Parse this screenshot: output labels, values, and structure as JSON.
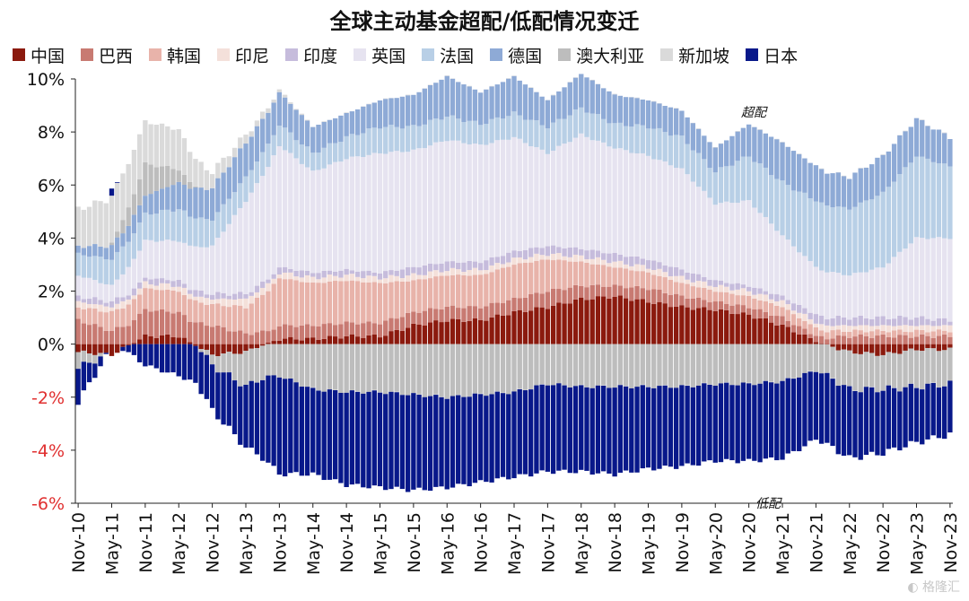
{
  "chart_data": {
    "type": "bar",
    "stacked": true,
    "title": "全球主动基金超配/低配情况变迁",
    "annotations": [
      "超配",
      "低配"
    ],
    "xlabel": "",
    "ylabel": "",
    "ylim": [
      -6,
      10
    ],
    "y_ticks": [
      "10%",
      "8%",
      "6%",
      "4%",
      "2%",
      "0%",
      "-2%",
      "-4%",
      "-6%"
    ],
    "y_tick_values": [
      10,
      8,
      6,
      4,
      2,
      0,
      -2,
      -4,
      -6
    ],
    "negative_tick_color": "#e03030",
    "x_tick_labels": [
      "Nov-10",
      "May-11",
      "Nov-11",
      "May-12",
      "Nov-12",
      "May-13",
      "Nov-13",
      "May-14",
      "Nov-14",
      "May-15",
      "Nov-15",
      "May-16",
      "Nov-16",
      "May-17",
      "Nov-17",
      "May-18",
      "Nov-18",
      "May-19",
      "Nov-19",
      "May-20",
      "Nov-20",
      "May-21",
      "Nov-21",
      "May-22",
      "Nov-22",
      "May-23",
      "Nov-23"
    ],
    "grid": false,
    "legend_position": "top",
    "series_order": [
      "中国",
      "巴西",
      "韩国",
      "印尼",
      "印度",
      "英国",
      "法国",
      "德国",
      "澳大利亚",
      "新加坡",
      "日本"
    ],
    "colors": {
      "中国": "#8b1a0e",
      "巴西": "#c87a72",
      "韩国": "#e8b3aa",
      "印尼": "#f4e0da",
      "印度": "#c6bcdc",
      "英国": "#e6e3f0",
      "法国": "#b8cfe6",
      "德国": "#8eaad6",
      "澳大利亚": "#bdbdbd",
      "新加坡": "#dadada",
      "日本": "#08188a"
    },
    "keypoints": [
      {
        "date": "Nov-10",
        "中国": -0.3,
        "巴西": 0.9,
        "韩国": 0.5,
        "印尼": 0.2,
        "印度": 0.2,
        "英国": 0.8,
        "法国": 0.8,
        "德国": 0.3,
        "澳大利亚": -0.6,
        "新加坡": 1.4,
        "日本": -1.3
      },
      {
        "date": "May-11",
        "中国": -0.4,
        "巴西": 0.5,
        "韩国": 0.7,
        "印尼": 0.2,
        "印度": 0.2,
        "英国": 0.6,
        "法国": 1.0,
        "德国": 0.5,
        "澳大利亚": 0.1,
        "新加坡": 1.8,
        "日本": 0.2
      },
      {
        "date": "Nov-11",
        "中国": 0.3,
        "巴西": 1.0,
        "韩国": 0.8,
        "印尼": 0.2,
        "印度": 0.2,
        "英国": 1.4,
        "法国": 1.0,
        "德国": 0.7,
        "澳大利亚": 1.2,
        "新加坡": 1.6,
        "日本": -0.8
      },
      {
        "date": "May-12",
        "中国": 0.3,
        "巴西": 0.9,
        "韩国": 0.8,
        "印尼": 0.2,
        "印度": 0.2,
        "英国": 1.5,
        "法国": 1.2,
        "德国": 1.0,
        "澳大利亚": 0.5,
        "新加坡": 1.5,
        "日本": -1.2
      },
      {
        "date": "Nov-12",
        "中国": -0.4,
        "巴西": 0.7,
        "韩国": 0.8,
        "印尼": 0.2,
        "印度": 0.2,
        "英国": 1.8,
        "法国": 1.0,
        "德国": 1.2,
        "澳大利亚": -0.4,
        "新加坡": 0.6,
        "日本": -1.7
      },
      {
        "date": "May-13",
        "中国": -0.3,
        "巴西": 0.4,
        "韩国": 1.0,
        "印尼": 0.3,
        "印度": 0.2,
        "英国": 3.5,
        "法国": 0.9,
        "德国": 1.3,
        "澳大利亚": -1.3,
        "新加坡": 0.3,
        "日本": -2.3
      },
      {
        "date": "Nov-13",
        "中国": 0.2,
        "巴西": 0.5,
        "韩国": 1.8,
        "印尼": 0.2,
        "印度": 0.2,
        "英国": 4.6,
        "法国": 0.8,
        "德国": 1.2,
        "澳大利亚": -1.2,
        "新加坡": 0.1,
        "日本": -3.7
      },
      {
        "date": "May-14",
        "中国": 0.2,
        "巴西": 0.5,
        "韩国": 1.6,
        "印尼": 0.2,
        "印度": 0.2,
        "英国": 3.8,
        "法国": 0.7,
        "德国": 1.0,
        "澳大利亚": -1.7,
        "新加坡": 0.0,
        "日本": -3.2
      },
      {
        "date": "Nov-14",
        "中国": 0.3,
        "巴西": 0.5,
        "韩国": 1.6,
        "印尼": 0.2,
        "印度": 0.2,
        "英国": 4.2,
        "法国": 0.8,
        "德国": 0.9,
        "澳大利亚": -1.8,
        "新加坡": 0.0,
        "日本": -3.5
      },
      {
        "date": "May-15",
        "中国": 0.3,
        "巴西": 0.5,
        "韩国": 1.5,
        "印尼": 0.2,
        "印度": 0.2,
        "英国": 4.5,
        "法国": 1.0,
        "德国": 1.0,
        "澳大利亚": -1.8,
        "新加坡": 0.0,
        "日本": -3.6
      },
      {
        "date": "Nov-15",
        "中国": 0.7,
        "巴西": 0.5,
        "韩国": 1.2,
        "印尼": 0.2,
        "印度": 0.3,
        "英国": 4.4,
        "法国": 0.9,
        "德国": 1.2,
        "澳大利亚": -1.9,
        "新加坡": 0.0,
        "日本": -3.6
      },
      {
        "date": "May-16",
        "中国": 0.9,
        "巴西": 0.5,
        "韩国": 1.2,
        "印尼": 0.2,
        "印度": 0.3,
        "英国": 4.6,
        "法国": 0.9,
        "德国": 1.5,
        "澳大利亚": -2.0,
        "新加坡": 0.0,
        "日本": -3.4
      },
      {
        "date": "Nov-16",
        "中国": 0.9,
        "巴西": 0.5,
        "韩国": 1.2,
        "印尼": 0.2,
        "印度": 0.3,
        "英国": 4.4,
        "法国": 0.8,
        "德国": 1.2,
        "澳大利亚": -1.9,
        "新加坡": 0.0,
        "日本": -3.3
      },
      {
        "date": "May-17",
        "中国": 1.2,
        "巴西": 0.5,
        "韩国": 1.3,
        "印尼": 0.2,
        "印度": 0.3,
        "英国": 4.3,
        "法国": 0.9,
        "德国": 1.4,
        "澳大利亚": -1.8,
        "新加坡": 0.0,
        "日本": -3.2
      },
      {
        "date": "Nov-17",
        "中国": 1.4,
        "巴西": 0.6,
        "韩国": 1.2,
        "印尼": 0.2,
        "印度": 0.3,
        "英国": 3.5,
        "法国": 1.0,
        "德国": 1.0,
        "澳大利亚": -1.5,
        "新加坡": 0.0,
        "日本": -3.3
      },
      {
        "date": "May-18",
        "中国": 1.7,
        "巴西": 0.5,
        "韩国": 0.9,
        "印尼": 0.2,
        "印度": 0.3,
        "英国": 4.3,
        "法国": 1.0,
        "德国": 1.3,
        "澳大利亚": -1.6,
        "新加坡": 0.0,
        "日本": -3.2
      },
      {
        "date": "Nov-18",
        "中国": 1.8,
        "巴西": 0.4,
        "韩国": 0.7,
        "印尼": 0.2,
        "印度": 0.3,
        "英国": 4.0,
        "法国": 0.9,
        "德国": 1.1,
        "澳大利亚": -1.6,
        "新加坡": 0.0,
        "日本": -3.3
      },
      {
        "date": "May-19",
        "中国": 1.6,
        "巴西": 0.5,
        "韩国": 0.6,
        "印尼": 0.2,
        "印度": 0.3,
        "英国": 3.9,
        "法国": 1.1,
        "德国": 1.0,
        "澳大利亚": -1.6,
        "新加坡": 0.0,
        "日本": -3.1
      },
      {
        "date": "Nov-19",
        "中国": 1.4,
        "巴西": 0.4,
        "韩国": 0.5,
        "印尼": 0.2,
        "印度": 0.3,
        "英国": 3.8,
        "法国": 1.2,
        "德国": 1.0,
        "澳大利亚": -1.6,
        "新加坡": 0.0,
        "日本": -3.0
      },
      {
        "date": "May-20",
        "中国": 1.3,
        "巴西": 0.3,
        "韩国": 0.4,
        "印尼": 0.2,
        "印度": 0.2,
        "英国": 2.9,
        "法国": 1.2,
        "德国": 0.9,
        "澳大利亚": -1.5,
        "新加坡": 0.0,
        "日本": -2.9
      },
      {
        "date": "Nov-20",
        "中国": 1.1,
        "巴西": 0.3,
        "韩国": 0.4,
        "印尼": 0.2,
        "印度": 0.2,
        "英国": 3.2,
        "法国": 1.7,
        "德国": 1.2,
        "澳大利亚": -1.5,
        "新加坡": 0.0,
        "日本": -2.9
      },
      {
        "date": "May-21",
        "中国": 0.7,
        "巴西": 0.3,
        "韩国": 0.4,
        "印尼": 0.2,
        "印度": 0.2,
        "英国": 2.3,
        "法国": 2.0,
        "德国": 1.5,
        "澳大利亚": -1.4,
        "新加坡": 0.0,
        "日本": -2.9
      },
      {
        "date": "Nov-21",
        "中国": 0.1,
        "巴西": 0.2,
        "韩国": 0.3,
        "印尼": 0.2,
        "印度": 0.3,
        "英国": 1.8,
        "法国": 2.5,
        "德国": 1.3,
        "澳大利亚": -1.0,
        "新加坡": 0.0,
        "日本": -2.6
      },
      {
        "date": "May-22",
        "中国": -0.3,
        "巴西": 0.3,
        "韩国": 0.2,
        "印尼": 0.2,
        "印度": 0.3,
        "英国": 1.6,
        "法国": 2.5,
        "德国": 1.2,
        "澳大利亚": -1.4,
        "新加坡": 0.0,
        "日本": -2.6
      },
      {
        "date": "Nov-22",
        "中国": -0.4,
        "巴西": 0.3,
        "韩国": 0.2,
        "印尼": 0.2,
        "印度": 0.3,
        "英国": 1.9,
        "法国": 2.8,
        "德国": 1.4,
        "澳大利亚": -1.3,
        "新加坡": 0.0,
        "日本": -2.4
      },
      {
        "date": "May-23",
        "中国": -0.2,
        "巴西": 0.3,
        "韩国": 0.2,
        "印尼": 0.2,
        "印度": 0.3,
        "英国": 3.0,
        "法国": 3.1,
        "德国": 1.4,
        "澳大利亚": -1.4,
        "新加坡": 0.0,
        "日本": -2.1
      },
      {
        "date": "Nov-23",
        "中国": -0.2,
        "巴西": 0.3,
        "韩国": 0.2,
        "印尼": 0.2,
        "印度": 0.2,
        "英国": 3.1,
        "法国": 2.7,
        "德国": 1.1,
        "澳大利亚": -1.3,
        "新加坡": 0.0,
        "日本": -1.9
      }
    ]
  }
}
